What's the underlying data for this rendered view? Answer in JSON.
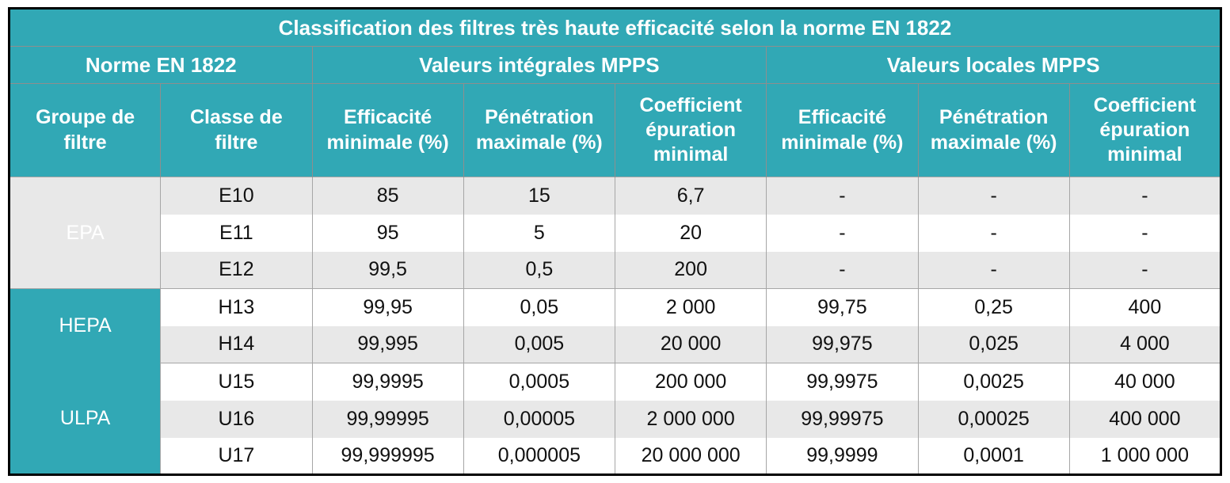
{
  "table": {
    "title": "Classification des filtres très haute efficacité selon la norme EN 1822",
    "group_headers": [
      {
        "label": "Norme EN 1822",
        "colspan": 2
      },
      {
        "label": "Valeurs intégrales MPPS",
        "colspan": 3
      },
      {
        "label": "Valeurs locales MPPS",
        "colspan": 3
      }
    ],
    "column_headers": [
      "Groupe de filtre",
      "Classe de filtre",
      "Efficacité minimale (%)",
      "Pénétration maximale (%)",
      "Coefficient épuration minimal",
      "Efficacité minimale (%)",
      "Pénétration maximale (%)",
      "Coefficient épuration minimal"
    ],
    "groups": [
      {
        "name": "EPA",
        "rows": [
          {
            "classe": "E10",
            "values": [
              "85",
              "15",
              "6,7",
              "-",
              "-",
              "-"
            ]
          },
          {
            "classe": "E11",
            "values": [
              "95",
              "5",
              "20",
              "-",
              "-",
              "-"
            ]
          },
          {
            "classe": "E12",
            "values": [
              "99,5",
              "0,5",
              "200",
              "-",
              "-",
              "-"
            ]
          }
        ]
      },
      {
        "name": "HEPA",
        "rows": [
          {
            "classe": "H13",
            "values": [
              "99,95",
              "0,05",
              "2 000",
              "99,75",
              "0,25",
              "400"
            ]
          },
          {
            "classe": "H14",
            "values": [
              "99,995",
              "0,005",
              "20 000",
              "99,975",
              "0,025",
              "4 000"
            ]
          }
        ]
      },
      {
        "name": "ULPA",
        "rows": [
          {
            "classe": "U15",
            "values": [
              "99,9995",
              "0,0005",
              "200 000",
              "99,9975",
              "0,0025",
              "40 000"
            ]
          },
          {
            "classe": "U16",
            "values": [
              "99,99995",
              "0,00005",
              "2 000 000",
              "99,99975",
              "0,00025",
              "400 000"
            ]
          },
          {
            "classe": "U17",
            "values": [
              "99,999995",
              "0,000005",
              "20 000 000",
              "99,9999",
              "0,0001",
              "1 000 000"
            ]
          }
        ]
      }
    ],
    "colors": {
      "teal": "#31a8b5",
      "stripe_gray": "#e8e8e8",
      "grid_gray": "#a6a6a6",
      "outer_border": "#000000",
      "header_text": "#ffffff",
      "data_text": "#111111"
    }
  }
}
